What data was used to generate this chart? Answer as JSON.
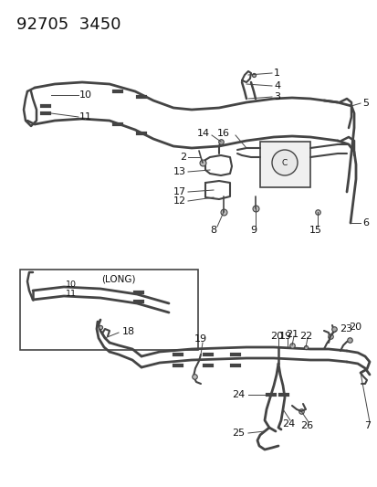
{
  "title_text": "92705  3450",
  "bg": "#ffffff",
  "lc": "#444444",
  "tc": "#111111",
  "fig_w": 4.14,
  "fig_h": 5.33,
  "dpi": 100
}
